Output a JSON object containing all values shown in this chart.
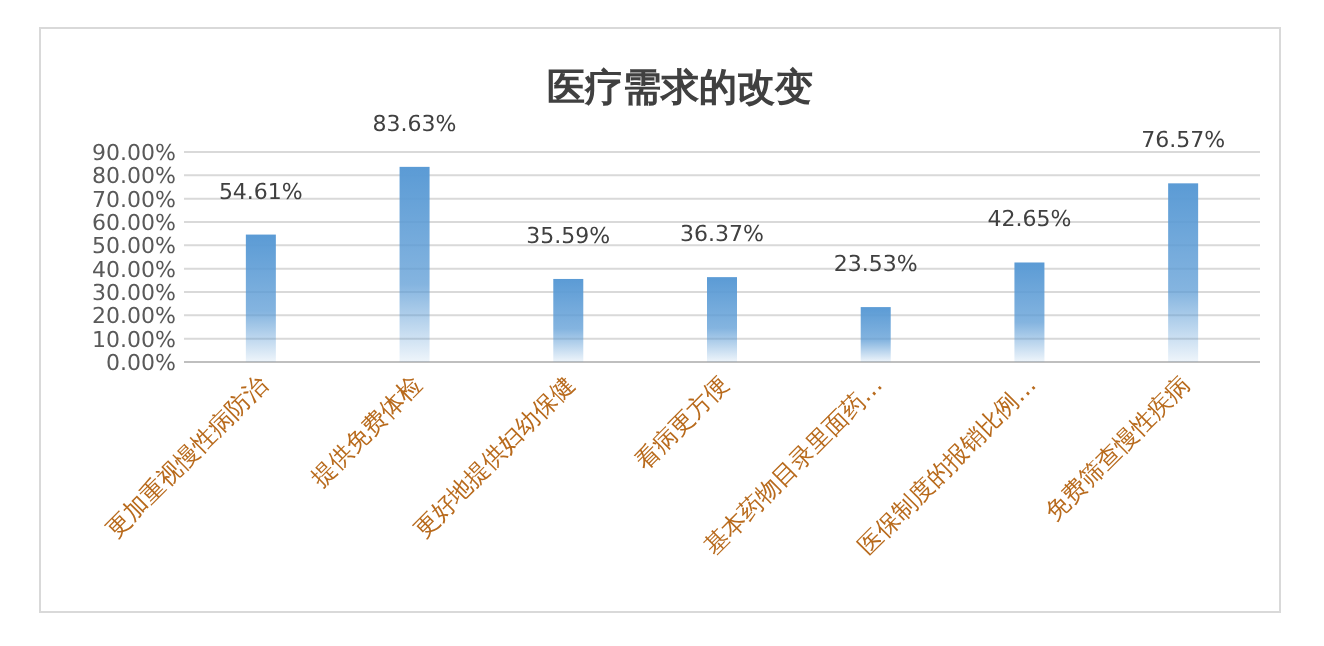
{
  "chart_data": {
    "type": "bar",
    "title": "医疗需求的改变",
    "categories": [
      "更加重视慢性病防治",
      "提供免费体检",
      "更好地提供妇幼保健",
      "看病更方便",
      "基本药物目录里面药…",
      "医保制度的报销比例…",
      "免费筛查慢性疾病"
    ],
    "values": [
      54.61,
      83.63,
      35.59,
      36.37,
      23.53,
      42.65,
      76.57
    ],
    "value_labels": [
      "54.61%",
      "83.63%",
      "35.59%",
      "36.37%",
      "23.53%",
      "42.65%",
      "76.57%"
    ],
    "color": "#5b9bd5",
    "ylim": [
      0,
      90
    ],
    "yticks": [
      {
        "value": 0,
        "label": "0.00%"
      },
      {
        "value": 10,
        "label": "10.00%"
      },
      {
        "value": 20,
        "label": "20.00%"
      },
      {
        "value": 30,
        "label": "30.00%"
      },
      {
        "value": 40,
        "label": "40.00%"
      },
      {
        "value": 50,
        "label": "50.00%"
      },
      {
        "value": 60,
        "label": "60.00%"
      },
      {
        "value": 70,
        "label": "70.00%"
      },
      {
        "value": 80,
        "label": "80.00%"
      },
      {
        "value": 90,
        "label": "90.00%"
      }
    ],
    "grid": "y"
  }
}
